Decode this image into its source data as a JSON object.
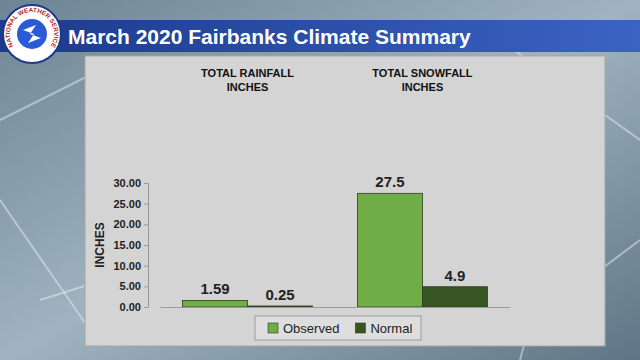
{
  "chart_data": {
    "type": "bar",
    "title": "March 2020 Fairbanks Climate Summary",
    "logo_text": "NATIONAL WEATHER SERVICE",
    "y_label": "INCHES",
    "categories": [
      "TOTAL RAINFALL INCHES",
      "TOTAL SNOWFALL INCHES"
    ],
    "series": [
      {
        "name": "Observed",
        "color": "#70ad47",
        "values": [
          1.59,
          27.5
        ]
      },
      {
        "name": "Normal",
        "color": "#375623",
        "values": [
          0.25,
          4.9
        ]
      }
    ],
    "ylim": [
      0,
      30
    ],
    "yticks": [
      {
        "value": 0,
        "label": "0.00"
      },
      {
        "value": 5,
        "label": "5.00"
      },
      {
        "value": 10,
        "label": "10.00"
      },
      {
        "value": 15,
        "label": "15.00"
      },
      {
        "value": 20,
        "label": "20.00"
      },
      {
        "value": 25,
        "label": "25.00"
      },
      {
        "value": 30,
        "label": "30.00"
      }
    ],
    "grid": false,
    "data_labels": true,
    "legend": "bottom"
  }
}
